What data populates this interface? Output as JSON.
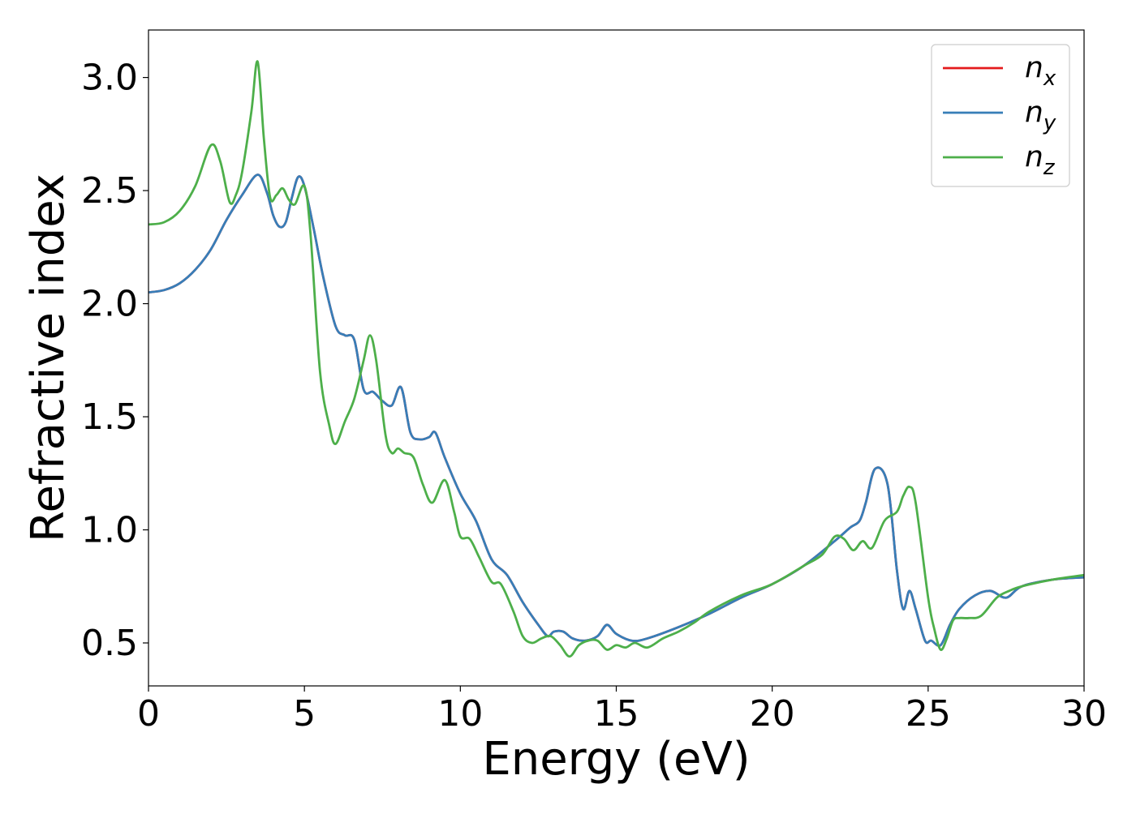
{
  "chart_data": {
    "type": "line",
    "xlabel": "Energy (eV)",
    "ylabel": "Refractive index",
    "xlim": [
      0,
      30
    ],
    "ylim": [
      0.31,
      3.21
    ],
    "xticks": [
      0,
      5,
      10,
      15,
      20,
      25,
      30
    ],
    "xtick_labels": [
      "0",
      "5",
      "10",
      "15",
      "20",
      "25",
      "30"
    ],
    "yticks": [
      0.5,
      1.0,
      1.5,
      2.0,
      2.5,
      3.0
    ],
    "ytick_labels": [
      "0.5",
      "1.0",
      "1.5",
      "2.0",
      "2.5",
      "3.0"
    ],
    "grid": false,
    "legend_position": "top-right",
    "series": [
      {
        "name": "n_x",
        "legend_base": "n",
        "legend_sub": "x",
        "color": "#e41a1c",
        "x": [
          0,
          0.5,
          1.0,
          1.5,
          2.0,
          2.5,
          3.0,
          3.5,
          3.8,
          4.0,
          4.2,
          4.4,
          4.6,
          4.8,
          5.0,
          5.3,
          5.6,
          6.0,
          6.3,
          6.6,
          6.9,
          7.2,
          7.5,
          7.8,
          8.1,
          8.4,
          8.7,
          9.0,
          9.2,
          9.5,
          10.0,
          10.5,
          11.0,
          11.5,
          12.0,
          12.5,
          12.8,
          13.0,
          13.3,
          13.6,
          14.0,
          14.4,
          14.7,
          15.0,
          15.5,
          16.0,
          17.0,
          18.0,
          19.0,
          20.0,
          21.0,
          22.0,
          22.5,
          22.8,
          23.0,
          23.3,
          23.7,
          24.0,
          24.2,
          24.4,
          24.6,
          24.9,
          25.1,
          25.4,
          25.7,
          26.0,
          26.5,
          27.0,
          27.5,
          28.0,
          29.0,
          30.0
        ],
        "values": [
          2.05,
          2.06,
          2.09,
          2.15,
          2.24,
          2.37,
          2.48,
          2.57,
          2.49,
          2.39,
          2.34,
          2.36,
          2.47,
          2.56,
          2.52,
          2.33,
          2.12,
          1.9,
          1.86,
          1.84,
          1.62,
          1.61,
          1.57,
          1.55,
          1.63,
          1.43,
          1.4,
          1.41,
          1.43,
          1.32,
          1.16,
          1.04,
          0.87,
          0.8,
          0.68,
          0.58,
          0.53,
          0.55,
          0.55,
          0.52,
          0.51,
          0.53,
          0.58,
          0.54,
          0.51,
          0.52,
          0.57,
          0.63,
          0.7,
          0.76,
          0.84,
          0.95,
          1.01,
          1.04,
          1.12,
          1.27,
          1.2,
          0.82,
          0.65,
          0.73,
          0.65,
          0.51,
          0.51,
          0.49,
          0.58,
          0.65,
          0.71,
          0.73,
          0.7,
          0.75,
          0.78,
          0.79
        ]
      },
      {
        "name": "n_y",
        "legend_base": "n",
        "legend_sub": "y",
        "color": "#377eb8",
        "x": [
          0,
          0.5,
          1.0,
          1.5,
          2.0,
          2.5,
          3.0,
          3.5,
          3.8,
          4.0,
          4.2,
          4.4,
          4.6,
          4.8,
          5.0,
          5.3,
          5.6,
          6.0,
          6.3,
          6.6,
          6.9,
          7.2,
          7.5,
          7.8,
          8.1,
          8.4,
          8.7,
          9.0,
          9.2,
          9.5,
          10.0,
          10.5,
          11.0,
          11.5,
          12.0,
          12.5,
          12.8,
          13.0,
          13.3,
          13.6,
          14.0,
          14.4,
          14.7,
          15.0,
          15.5,
          16.0,
          17.0,
          18.0,
          19.0,
          20.0,
          21.0,
          22.0,
          22.5,
          22.8,
          23.0,
          23.3,
          23.7,
          24.0,
          24.2,
          24.4,
          24.6,
          24.9,
          25.1,
          25.4,
          25.7,
          26.0,
          26.5,
          27.0,
          27.5,
          28.0,
          29.0,
          30.0
        ],
        "values": [
          2.05,
          2.06,
          2.09,
          2.15,
          2.24,
          2.37,
          2.48,
          2.57,
          2.49,
          2.39,
          2.34,
          2.36,
          2.47,
          2.56,
          2.52,
          2.33,
          2.12,
          1.9,
          1.86,
          1.84,
          1.62,
          1.61,
          1.57,
          1.55,
          1.63,
          1.43,
          1.4,
          1.41,
          1.43,
          1.32,
          1.16,
          1.04,
          0.87,
          0.8,
          0.68,
          0.58,
          0.53,
          0.55,
          0.55,
          0.52,
          0.51,
          0.53,
          0.58,
          0.54,
          0.51,
          0.52,
          0.57,
          0.63,
          0.7,
          0.76,
          0.84,
          0.95,
          1.01,
          1.04,
          1.12,
          1.27,
          1.2,
          0.82,
          0.65,
          0.73,
          0.65,
          0.51,
          0.51,
          0.49,
          0.58,
          0.65,
          0.71,
          0.73,
          0.7,
          0.75,
          0.78,
          0.79
        ]
      },
      {
        "name": "n_z",
        "legend_base": "n",
        "legend_sub": "z",
        "color": "#4daf4a",
        "x": [
          0,
          0.5,
          1.0,
          1.5,
          2.0,
          2.3,
          2.6,
          2.8,
          3.0,
          3.3,
          3.5,
          3.7,
          3.9,
          4.1,
          4.3,
          4.5,
          4.7,
          5.0,
          5.2,
          5.5,
          5.8,
          6.0,
          6.3,
          6.6,
          6.9,
          7.1,
          7.3,
          7.6,
          7.8,
          8.0,
          8.2,
          8.5,
          8.8,
          9.1,
          9.5,
          9.8,
          10.0,
          10.3,
          10.6,
          11.0,
          11.3,
          11.7,
          12.0,
          12.3,
          12.6,
          12.9,
          13.2,
          13.5,
          13.8,
          14.1,
          14.4,
          14.7,
          15.0,
          15.3,
          15.6,
          16.0,
          16.5,
          17.0,
          17.5,
          18.0,
          19.0,
          20.0,
          21.0,
          21.6,
          22.0,
          22.3,
          22.6,
          22.9,
          23.2,
          23.6,
          24.0,
          24.2,
          24.4,
          24.6,
          25.0,
          25.2,
          25.4,
          25.6,
          25.8,
          26.0,
          26.3,
          26.7,
          27.2,
          27.6,
          28.0,
          29.0,
          30.0
        ],
        "values": [
          2.35,
          2.36,
          2.41,
          2.52,
          2.7,
          2.63,
          2.45,
          2.48,
          2.58,
          2.85,
          3.07,
          2.73,
          2.47,
          2.48,
          2.51,
          2.46,
          2.44,
          2.52,
          2.3,
          1.7,
          1.46,
          1.38,
          1.48,
          1.58,
          1.75,
          1.86,
          1.75,
          1.42,
          1.34,
          1.36,
          1.34,
          1.32,
          1.2,
          1.12,
          1.22,
          1.08,
          0.97,
          0.96,
          0.88,
          0.77,
          0.76,
          0.64,
          0.53,
          0.5,
          0.52,
          0.53,
          0.49,
          0.44,
          0.49,
          0.51,
          0.51,
          0.47,
          0.49,
          0.48,
          0.5,
          0.48,
          0.52,
          0.55,
          0.59,
          0.64,
          0.71,
          0.76,
          0.84,
          0.89,
          0.97,
          0.96,
          0.91,
          0.95,
          0.92,
          1.04,
          1.08,
          1.15,
          1.19,
          1.12,
          0.7,
          0.56,
          0.47,
          0.52,
          0.6,
          0.61,
          0.61,
          0.62,
          0.7,
          0.73,
          0.75,
          0.78,
          0.8
        ]
      }
    ]
  }
}
